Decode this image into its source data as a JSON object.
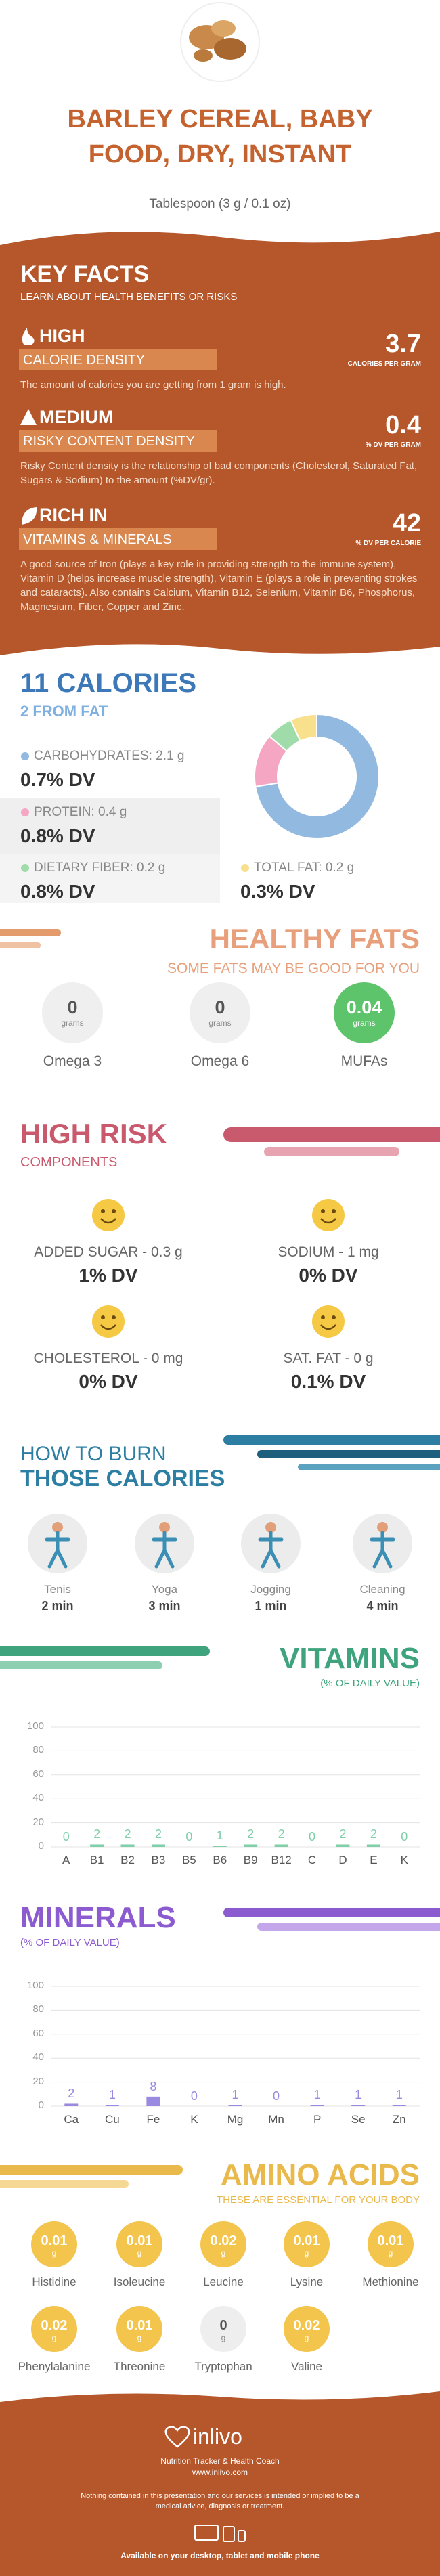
{
  "header": {
    "title": "BARLEY CEREAL, BABY FOOD, DRY, INSTANT",
    "serving": "Tablespoon (3 g / 0.1 oz)"
  },
  "key_facts": {
    "title": "KEY FACTS",
    "subtitle": "LEARN ABOUT HEALTH BENEFITS OR RISKS",
    "items": [
      {
        "level": "HIGH",
        "name": "CALORIE DENSITY",
        "value": 3.7,
        "unit": "CALORIES PER GRAM",
        "text": "The amount of calories you are getting from 1 gram is high."
      },
      {
        "level": "MEDIUM",
        "name": "RISKY CONTENT DENSITY",
        "value": 0.4,
        "unit": "% DV PER GRAM",
        "text": "Risky Content density is the relationship of bad components (Cholesterol, Saturated Fat, Sugars & Sodium) to the amount (%DV/gr)."
      },
      {
        "level": "RICH  IN",
        "name": "VITAMINS & MINERALS",
        "value": 42,
        "unit": "% DV PER CALORIE",
        "text": "A good source of Iron (plays a key role in providing strength to the immune system), Vitamin D (helps increase muscle strength), Vitamin E (plays a role in preventing strokes and cataracts). Also contains Calcium, Vitamin B12, Selenium, Vitamin B6, Phosphorus, Magnesium, Fiber, Copper and Zinc."
      }
    ]
  },
  "calories": {
    "title": "11 CALORIES",
    "subtitle": "2 FROM FAT",
    "nutrients": [
      {
        "label": "CARBOHYDRATES: 2.1 g",
        "grams": 2.1,
        "dv": "0.7% DV",
        "color": "#92b9e0"
      },
      {
        "label": "PROTEIN: 0.4 g",
        "grams": 0.4,
        "dv": "0.8% DV",
        "color": "#f5a6c3"
      },
      {
        "label": "DIETARY FIBER: 0.2 g",
        "grams": 0.2,
        "dv": "0.8% DV",
        "color": "#9fdcaa"
      },
      {
        "label": "TOTAL FAT: 0.2 g",
        "grams": 0.2,
        "dv": "0.3% DV",
        "color": "#f8e08c"
      }
    ]
  },
  "healthy_fats": {
    "title": "HEALTHY FATS",
    "subtitle": "SOME FATS MAY BE GOOD FOR YOU",
    "items": [
      {
        "value": 0,
        "unit": "grams",
        "name": "Omega 3"
      },
      {
        "value": 0,
        "unit": "grams",
        "name": "Omega 6"
      },
      {
        "value": 0.04,
        "unit": "grams",
        "name": "MUFAs"
      }
    ]
  },
  "high_risk": {
    "title": "HIGH RISK",
    "subtitle": "COMPONENTS",
    "items": [
      {
        "label": "ADDED SUGAR - 0.3 g",
        "dv": "1% DV"
      },
      {
        "label": "SODIUM - 1 mg",
        "dv": "0% DV"
      },
      {
        "label": "CHOLESTEROL - 0 mg",
        "dv": "0% DV"
      },
      {
        "label": "SAT. FAT - 0 g",
        "dv": "0.1% DV"
      }
    ]
  },
  "burn": {
    "title_1": "HOW TO BURN",
    "title_2": "THOSE CALORIES",
    "items": [
      {
        "name": "Tenis",
        "time": "2 min"
      },
      {
        "name": "Yoga",
        "time": "3 min"
      },
      {
        "name": "Jogging",
        "time": "1 min"
      },
      {
        "name": "Cleaning",
        "time": "4 min"
      }
    ]
  },
  "vitamins": {
    "title": "VITAMINS",
    "subtitle": "(% OF DAILY VALUE)",
    "categories": [
      "A",
      "B1",
      "B2",
      "B3",
      "B5",
      "B6",
      "B9",
      "B12",
      "C",
      "D",
      "E",
      "K"
    ],
    "values": [
      0,
      2,
      2,
      2,
      0,
      1,
      2,
      2,
      0,
      2,
      2,
      0
    ],
    "color": "#7fd0a9",
    "ylim": [
      0,
      100
    ],
    "yticks": [
      0,
      20,
      40,
      60,
      80,
      100
    ]
  },
  "minerals": {
    "title": "MINERALS",
    "subtitle": "(% OF DAILY VALUE)",
    "categories": [
      "Ca",
      "Cu",
      "Fe",
      "K",
      "Mg",
      "Mn",
      "P",
      "Se",
      "Zn"
    ],
    "values": [
      2,
      1,
      8,
      0,
      1,
      0,
      1,
      1,
      1
    ],
    "color": "#9b88e0",
    "ylim": [
      0,
      100
    ],
    "yticks": [
      0,
      20,
      40,
      60,
      80,
      100
    ]
  },
  "amino_acids": {
    "title": "AMINO ACIDS",
    "subtitle": "THESE ARE ESSENTIAL FOR YOUR BODY",
    "items": [
      {
        "name": "Histidine",
        "value": 0.01,
        "unit": "g"
      },
      {
        "name": "Isoleucine",
        "value": 0.01,
        "unit": "g"
      },
      {
        "name": "Leucine",
        "value": 0.02,
        "unit": "g"
      },
      {
        "name": "Lysine",
        "value": 0.01,
        "unit": "g"
      },
      {
        "name": "Methionine",
        "value": 0.01,
        "unit": "g"
      },
      {
        "name": "Phenylalanine",
        "value": 0.02,
        "unit": "g"
      },
      {
        "name": "Threonine",
        "value": 0.01,
        "unit": "g"
      },
      {
        "name": "Tryptophan",
        "value": 0,
        "unit": "g"
      },
      {
        "name": "Valine",
        "value": 0.02,
        "unit": "g"
      }
    ]
  },
  "footer": {
    "brand": "inlivo",
    "tagline": "Nutrition Tracker & Health Coach",
    "url": "www.inlivo.com",
    "disclaimer": "Nothing contained in this presentation and our services is intended or implied to be a medical advice, diagnosis or treatment.",
    "devices": "Available on your desktop, tablet and mobile phone"
  }
}
